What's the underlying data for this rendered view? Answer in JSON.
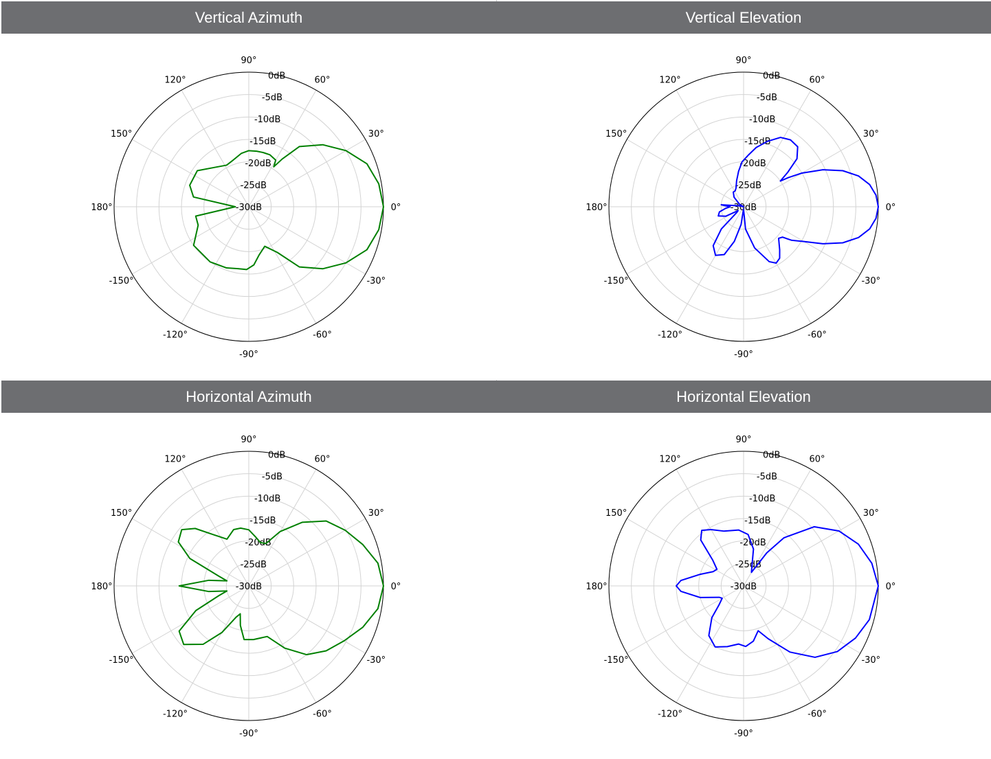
{
  "panels": [
    {
      "title": "Vertical Azimuth"
    },
    {
      "title": "Vertical Elevation"
    },
    {
      "title": "Horizontal Azimuth"
    },
    {
      "title": "Horizontal Elevation"
    }
  ],
  "angle_ticks": [
    "0°",
    "30°",
    "60°",
    "90°",
    "120°",
    "150°",
    "180°",
    "-150°",
    "-120°",
    "-90°",
    "-60°",
    "-30°"
  ],
  "radial_ticks": [
    "0dB",
    "-5dB",
    "-10dB",
    "-15dB",
    "-20dB",
    "-25dB",
    "-30dB"
  ],
  "chart_data": [
    {
      "type": "line",
      "subtype": "polar",
      "title": "Vertical Azimuth",
      "rlim": [
        -30,
        0
      ],
      "grid": true,
      "color": "#008000",
      "points": [
        [
          0,
          0
        ],
        [
          10,
          -0.6
        ],
        [
          20,
          -2
        ],
        [
          30,
          -5
        ],
        [
          40,
          -8.5
        ],
        [
          50,
          -12.5
        ],
        [
          55,
          -17
        ],
        [
          58,
          -19.5
        ],
        [
          60,
          -18
        ],
        [
          68,
          -17.5
        ],
        [
          75,
          -17.5
        ],
        [
          82,
          -17.5
        ],
        [
          90,
          -17.5
        ],
        [
          98,
          -18
        ],
        [
          108,
          -19
        ],
        [
          118,
          -19.5
        ],
        [
          130,
          -18.5
        ],
        [
          145,
          -16
        ],
        [
          160,
          -16
        ],
        [
          170,
          -17.5
        ],
        [
          180,
          -27
        ],
        [
          190,
          -18
        ],
        [
          200,
          -18
        ],
        [
          215,
          -15
        ],
        [
          235,
          -15
        ],
        [
          250,
          -15.5
        ],
        [
          260,
          -16
        ],
        [
          268,
          -16
        ],
        [
          275,
          -17
        ],
        [
          282,
          -19
        ],
        [
          292,
          -20.5
        ],
        [
          302,
          -18
        ],
        [
          310,
          -12.5
        ],
        [
          320,
          -8.5
        ],
        [
          330,
          -5
        ],
        [
          340,
          -2
        ],
        [
          350,
          -0.6
        ],
        [
          360,
          0
        ]
      ]
    },
    {
      "type": "line",
      "subtype": "polar",
      "title": "Vertical Elevation",
      "rlim": [
        -30,
        0
      ],
      "grid": true,
      "color": "#0000ff",
      "points": [
        [
          0,
          0
        ],
        [
          5,
          -0.4
        ],
        [
          10,
          -1.5
        ],
        [
          15,
          -3.5
        ],
        [
          20,
          -6.5
        ],
        [
          25,
          -10.5
        ],
        [
          30,
          -15
        ],
        [
          33,
          -18
        ],
        [
          35,
          -20
        ],
        [
          38,
          -17.5
        ],
        [
          42,
          -14
        ],
        [
          48,
          -12
        ],
        [
          55,
          -11.8
        ],
        [
          62,
          -12.5
        ],
        [
          70,
          -14.5
        ],
        [
          78,
          -16.5
        ],
        [
          85,
          -18.5
        ],
        [
          92,
          -20
        ],
        [
          98,
          -22
        ],
        [
          105,
          -24
        ],
        [
          112,
          -25.5
        ],
        [
          118,
          -26
        ],
        [
          125,
          -26
        ],
        [
          135,
          -27
        ],
        [
          150,
          -29
        ],
        [
          160,
          -30
        ],
        [
          168,
          -29
        ],
        [
          175,
          -25
        ],
        [
          180,
          -27
        ],
        [
          185,
          -26
        ],
        [
          192,
          -24.5
        ],
        [
          200,
          -24
        ],
        [
          208,
          -25.5
        ],
        [
          215,
          -28.5
        ],
        [
          220,
          -28
        ],
        [
          225,
          -23
        ],
        [
          232,
          -19
        ],
        [
          240,
          -17.5
        ],
        [
          248,
          -18.5
        ],
        [
          255,
          -22
        ],
        [
          262,
          -26
        ],
        [
          268,
          -29.5
        ],
        [
          275,
          -25
        ],
        [
          285,
          -20.5
        ],
        [
          295,
          -16.5
        ],
        [
          300,
          -15.5
        ],
        [
          305,
          -16
        ],
        [
          310,
          -17.5
        ],
        [
          318,
          -19.5
        ],
        [
          322,
          -19
        ],
        [
          325,
          -17
        ],
        [
          330,
          -14.5
        ],
        [
          335,
          -10.5
        ],
        [
          340,
          -6.5
        ],
        [
          345,
          -3.5
        ],
        [
          350,
          -1.5
        ],
        [
          355,
          -0.4
        ],
        [
          360,
          0
        ]
      ]
    },
    {
      "type": "line",
      "subtype": "polar",
      "title": "Horizontal Azimuth",
      "rlim": [
        -30,
        0
      ],
      "grid": true,
      "color": "#008000",
      "points": [
        [
          0,
          0
        ],
        [
          10,
          -0.8
        ],
        [
          20,
          -3
        ],
        [
          30,
          -5.2
        ],
        [
          40,
          -7.5
        ],
        [
          50,
          -11.5
        ],
        [
          60,
          -16
        ],
        [
          68,
          -19.8
        ],
        [
          75,
          -20
        ],
        [
          82,
          -19
        ],
        [
          90,
          -17.5
        ],
        [
          98,
          -17
        ],
        [
          105,
          -17
        ],
        [
          115,
          -18.5
        ],
        [
          125,
          -16
        ],
        [
          133,
          -12.5
        ],
        [
          140,
          -10.5
        ],
        [
          148,
          -11.5
        ],
        [
          155,
          -15.5
        ],
        [
          162,
          -23
        ],
        [
          167,
          -25
        ],
        [
          172,
          -21
        ],
        [
          180,
          -14.5
        ],
        [
          188,
          -21
        ],
        [
          193,
          -25
        ],
        [
          198,
          -23
        ],
        [
          205,
          -17
        ],
        [
          213,
          -11.5
        ],
        [
          222,
          -10.5
        ],
        [
          232,
          -13.5
        ],
        [
          240,
          -18
        ],
        [
          248,
          -22.5
        ],
        [
          253,
          -23.5
        ],
        [
          258,
          -21
        ],
        [
          265,
          -18
        ],
        [
          275,
          -18
        ],
        [
          290,
          -18
        ],
        [
          300,
          -14
        ],
        [
          310,
          -10
        ],
        [
          320,
          -7.5
        ],
        [
          330,
          -5.5
        ],
        [
          340,
          -3
        ],
        [
          350,
          -0.8
        ],
        [
          360,
          0
        ]
      ]
    },
    {
      "type": "line",
      "subtype": "polar",
      "title": "Horizontal Elevation",
      "rlim": [
        -30,
        0
      ],
      "grid": true,
      "color": "#0000ff",
      "points": [
        [
          0,
          0
        ],
        [
          10,
          -1
        ],
        [
          20,
          -2.8
        ],
        [
          30,
          -5.5
        ],
        [
          40,
          -9.5
        ],
        [
          50,
          -16
        ],
        [
          55,
          -21
        ],
        [
          60,
          -26.5
        ],
        [
          66,
          -25.5
        ],
        [
          75,
          -21.5
        ],
        [
          85,
          -18.5
        ],
        [
          95,
          -17.5
        ],
        [
          110,
          -17
        ],
        [
          120,
          -15.5
        ],
        [
          127,
          -14.5
        ],
        [
          133,
          -16
        ],
        [
          140,
          -21
        ],
        [
          148,
          -23
        ],
        [
          155,
          -22.5
        ],
        [
          165,
          -20
        ],
        [
          175,
          -16
        ],
        [
          180,
          -15
        ],
        [
          185,
          -16
        ],
        [
          195,
          -20
        ],
        [
          205,
          -24
        ],
        [
          210,
          -24.5
        ],
        [
          218,
          -23
        ],
        [
          225,
          -20
        ],
        [
          235,
          -16.5
        ],
        [
          245,
          -15
        ],
        [
          255,
          -16
        ],
        [
          265,
          -17
        ],
        [
          272,
          -16.5
        ],
        [
          280,
          -17.5
        ],
        [
          288,
          -19.5
        ],
        [
          295,
          -17
        ],
        [
          305,
          -12
        ],
        [
          315,
          -7.5
        ],
        [
          325,
          -4.5
        ],
        [
          335,
          -2.5
        ],
        [
          345,
          -1
        ],
        [
          360,
          0
        ]
      ]
    }
  ]
}
